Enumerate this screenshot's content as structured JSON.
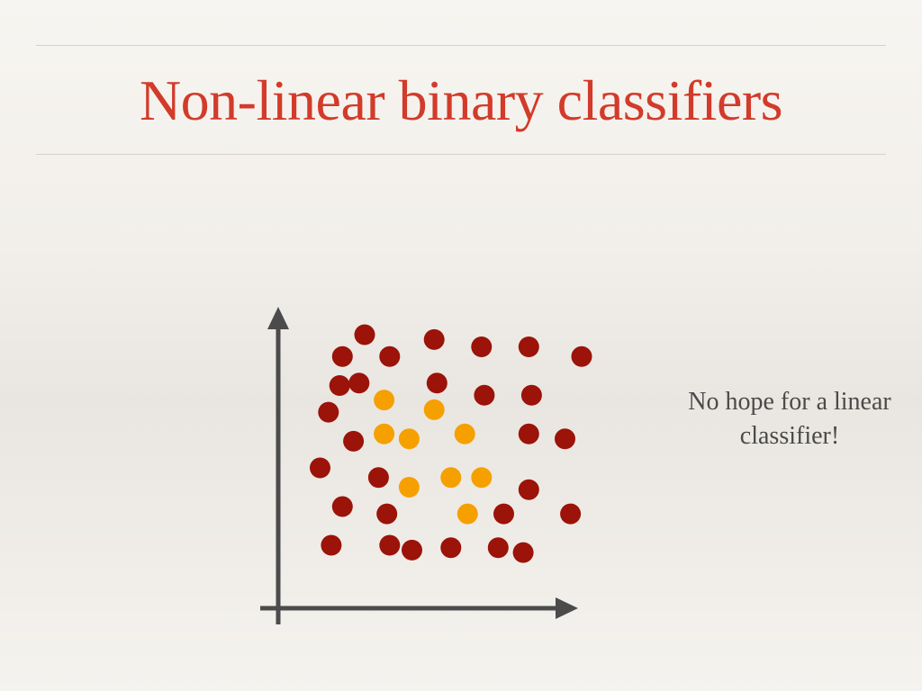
{
  "slide": {
    "title": "Non-linear binary classifiers",
    "note": "No hope for a linear classifier!"
  },
  "colors": {
    "title": "#d23b2a",
    "class_outer": "#9b1309",
    "class_inner": "#f6a000",
    "axis": "#4b4b4b",
    "text": "#4a4a4a"
  },
  "chart_data": {
    "type": "scatter",
    "title": "",
    "xlabel": "",
    "ylabel": "",
    "xlim": [
      0,
      100
    ],
    "ylim": [
      0,
      100
    ],
    "grid": false,
    "series": [
      {
        "color": "#9b1309",
        "x": [
          22,
          47,
          64,
          81,
          100,
          14,
          31,
          13,
          20,
          48,
          65,
          82,
          9,
          18,
          81,
          94,
          6,
          27,
          14,
          30,
          81,
          72,
          96,
          10,
          31,
          39,
          53,
          70,
          79
        ],
        "y": [
          100,
          98,
          95,
          95,
          91,
          91,
          91,
          79,
          80,
          80,
          75,
          75,
          68,
          56,
          59,
          57,
          45,
          41,
          29,
          26,
          36,
          26,
          26,
          13,
          13,
          11,
          12,
          12,
          10
        ]
      },
      {
        "color": "#f6a000",
        "x": [
          29,
          47,
          29,
          38,
          58,
          38,
          53,
          64,
          59
        ],
        "y": [
          73,
          69,
          59,
          57,
          59,
          37,
          41,
          41,
          26
        ]
      }
    ]
  }
}
